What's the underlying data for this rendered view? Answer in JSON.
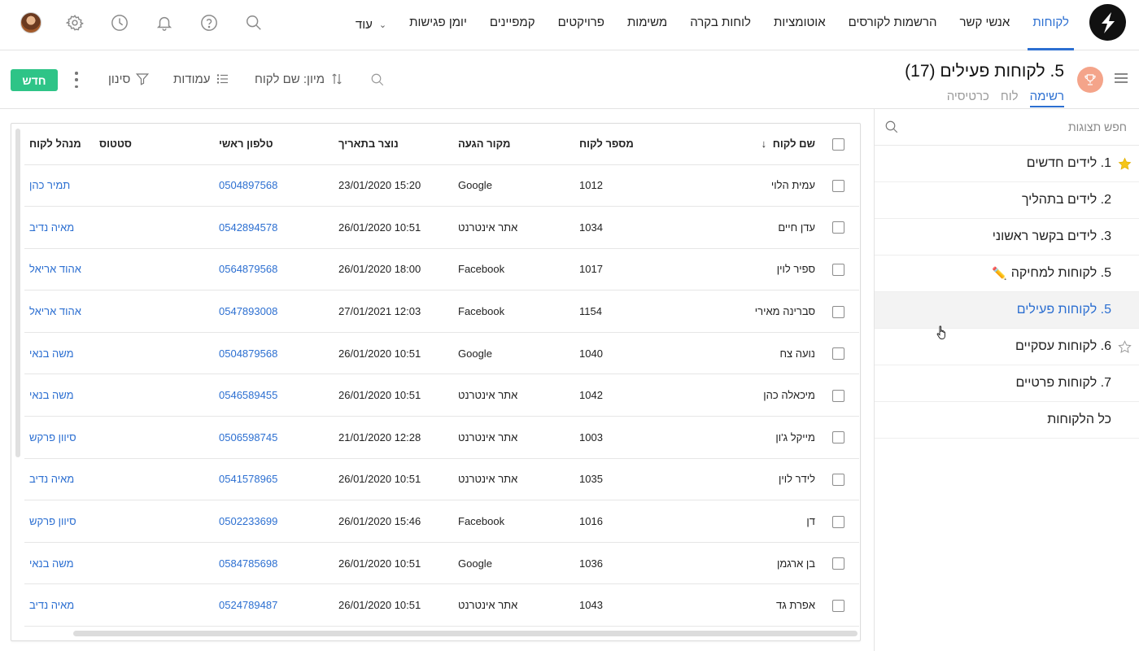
{
  "nav": {
    "items": [
      "לקוחות",
      "אנשי קשר",
      "הרשמות לקורסים",
      "אוטומציות",
      "לוחות בקרה",
      "משימות",
      "פרויקטים",
      "קמפיינים",
      "יומן פגישות"
    ],
    "more_label": "עוד",
    "accent": "#2c6fd1"
  },
  "top_icons": [
    "search-icon",
    "help-icon",
    "bell-icon",
    "clock-icon",
    "gear-icon",
    "avatar"
  ],
  "view": {
    "title": "5. לקוחות פעילים",
    "count": "(17)",
    "tabs": [
      "רשימה",
      "לוח",
      "כרטיסיה"
    ],
    "active_tab": "רשימה"
  },
  "toolbar": {
    "sort_label": "מיון: שם לקוח",
    "columns_label": "עמודות",
    "filter_label": "סינון",
    "new_label": "חדש",
    "new_color": "#2ec487"
  },
  "sidebar": {
    "search_placeholder": "חפש תצוגות",
    "items": [
      {
        "label": "1. לידים חדשים",
        "star": "filled"
      },
      {
        "label": "2. לידים בתהליך",
        "star": "none"
      },
      {
        "label": "3. לידים בקשר ראשוני",
        "star": "none"
      },
      {
        "label": "5. לקוחות למחיקה",
        "star": "none",
        "emoji": "✏️"
      },
      {
        "label": "5. לקוחות פעילים",
        "star": "none",
        "active": true
      },
      {
        "label": "6. לקוחות עסקיים",
        "star": "outline"
      },
      {
        "label": "7. לקוחות פרטיים",
        "star": "none"
      },
      {
        "label": "כל הלקוחות",
        "star": "none"
      }
    ]
  },
  "table": {
    "sort_indicator": "↓",
    "headers": {
      "name": "שם לקוח",
      "number": "מספר לקוח",
      "source": "מקור הגעה",
      "created": "נוצר בתאריך",
      "phone": "טלפון ראשי",
      "status": "סטטוס",
      "manager": "מנהל לקוח"
    },
    "rows": [
      {
        "name": "עמית הלוי",
        "number": "1012",
        "source": "Google",
        "created": "15:20 23/01/2020",
        "phone": "0504897568",
        "status": "",
        "manager": "תמיר כהן"
      },
      {
        "name": "עדן חיים",
        "number": "1034",
        "source": "אתר אינטרנט",
        "created": "10:51 26/01/2020",
        "phone": "0542894578",
        "status": "",
        "manager": "מאיה נדיב"
      },
      {
        "name": "ספיר לוין",
        "number": "1017",
        "source": "Facebook",
        "created": "18:00 26/01/2020",
        "phone": "0564879568",
        "status": "",
        "manager": "אהוד אריאל"
      },
      {
        "name": "סברינה מאירי",
        "number": "1154",
        "source": "Facebook",
        "created": "12:03 27/01/2021",
        "phone": "0547893008",
        "status": "",
        "manager": "אהוד אריאל"
      },
      {
        "name": "נועה צח",
        "number": "1040",
        "source": "Google",
        "created": "10:51 26/01/2020",
        "phone": "0504879568",
        "status": "",
        "manager": "משה בנאי"
      },
      {
        "name": "מיכאלה כהן",
        "number": "1042",
        "source": "אתר אינטרנט",
        "created": "10:51 26/01/2020",
        "phone": "0546589455",
        "status": "",
        "manager": "משה בנאי"
      },
      {
        "name": "מייקל ג'ון",
        "number": "1003",
        "source": "אתר אינטרנט",
        "created": "12:28 21/01/2020",
        "phone": "0506598745",
        "status": "",
        "manager": "סיוון פרקש"
      },
      {
        "name": "לידר לוין",
        "number": "1035",
        "source": "אתר אינטרנט",
        "created": "10:51 26/01/2020",
        "phone": "0541578965",
        "status": "",
        "manager": "מאיה נדיב"
      },
      {
        "name": "דן",
        "number": "1016",
        "source": "Facebook",
        "created": "15:46 26/01/2020",
        "phone": "0502233699",
        "status": "",
        "manager": "סיוון פרקש"
      },
      {
        "name": "בן ארגמן",
        "number": "1036",
        "source": "Google",
        "created": "10:51 26/01/2020",
        "phone": "0584785698",
        "status": "",
        "manager": "משה בנאי"
      },
      {
        "name": "אפרת גד",
        "number": "1043",
        "source": "אתר אינטרנט",
        "created": "10:51 26/01/2020",
        "phone": "0524789487",
        "status": "",
        "manager": "מאיה נדיב"
      },
      {
        "name": "",
        "number": "",
        "source": "",
        "created": "",
        "phone": "",
        "status": "",
        "manager": ""
      }
    ]
  }
}
